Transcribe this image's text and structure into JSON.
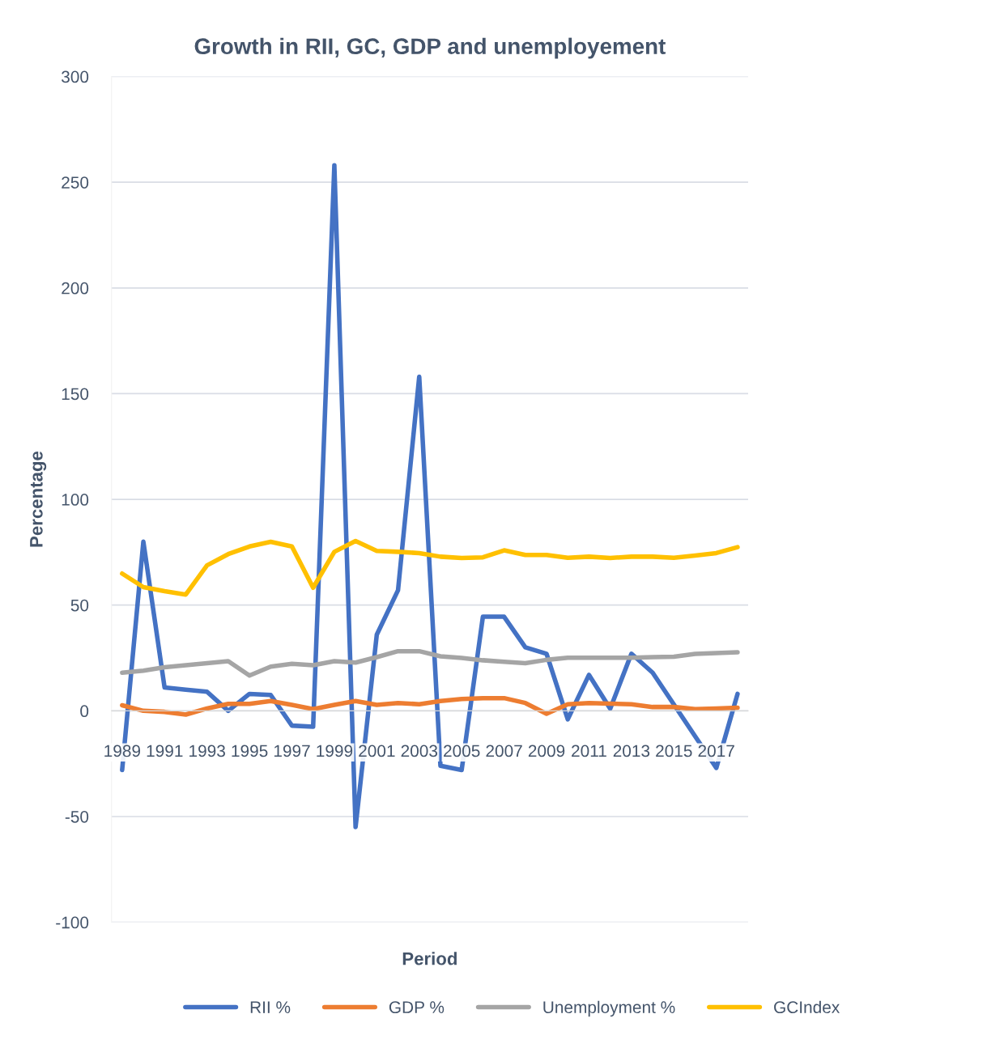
{
  "chart_data": {
    "type": "line",
    "title": "Growth in RII, GC, GDP and unemployement",
    "xlabel": "Period",
    "ylabel": "Percentage",
    "categories": [
      "1989",
      null,
      "1991",
      null,
      "1993",
      null,
      "1995",
      null,
      "1997",
      null,
      "1999",
      null,
      "2001",
      null,
      "2003",
      null,
      "2005",
      null,
      "2007",
      null,
      "2009",
      null,
      "2011",
      null,
      "2013",
      null,
      "2015",
      null,
      "2017",
      null
    ],
    "series": [
      {
        "name": "RII %",
        "color": "#4472c4",
        "values": [
          -28,
          80,
          11,
          10,
          9,
          0,
          8,
          7.5,
          -7,
          -7.5,
          258,
          -55,
          36,
          57,
          158,
          -26,
          -28,
          44.5,
          44.5,
          30,
          27,
          -4,
          17,
          1,
          27,
          18,
          3,
          -12,
          -27,
          8
        ]
      },
      {
        "name": "GDP %",
        "color": "#ed7d31",
        "values": [
          2.6,
          0,
          -0.5,
          -1.8,
          1.1,
          3.3,
          3.3,
          4.6,
          2.8,
          0.8,
          2.8,
          4.6,
          2.8,
          3.7,
          3.1,
          4.6,
          5.6,
          6,
          6,
          3.7,
          -1.4,
          3.1,
          3.7,
          3.4,
          3.1,
          1.8,
          1.8,
          0.8,
          1.1,
          1.5
        ]
      },
      {
        "name": "Unemployment %",
        "color": "#a5a5a5",
        "values": [
          18,
          19,
          20.6,
          21.6,
          22.5,
          23.5,
          16.7,
          20.9,
          22.2,
          21.6,
          23.5,
          22.8,
          25.4,
          28.2,
          28.2,
          25.8,
          25,
          23.9,
          23.2,
          22.5,
          24.1,
          25.1,
          25.1,
          25.1,
          25.1,
          25.4,
          25.6,
          26.9,
          27.3,
          27.7
        ]
      },
      {
        "name": "GCIndex",
        "color": "#ffc000",
        "values": [
          64.9,
          58.5,
          56.6,
          55,
          68.8,
          74.1,
          77.7,
          79.9,
          77.7,
          58.2,
          75.2,
          80.3,
          75.6,
          75.2,
          74.6,
          72.9,
          72.3,
          72.6,
          75.9,
          73.7,
          73.7,
          72.4,
          72.9,
          72.3,
          72.9,
          72.9,
          72.4,
          73.4,
          74.6,
          77.4
        ]
      }
    ],
    "ylim": [
      -100,
      300
    ],
    "yticks": [
      -100,
      -50,
      0,
      50,
      100,
      150,
      200,
      250,
      300
    ],
    "grid": "y",
    "legend": "bottom",
    "marker": "none",
    "line_style": "solid"
  }
}
